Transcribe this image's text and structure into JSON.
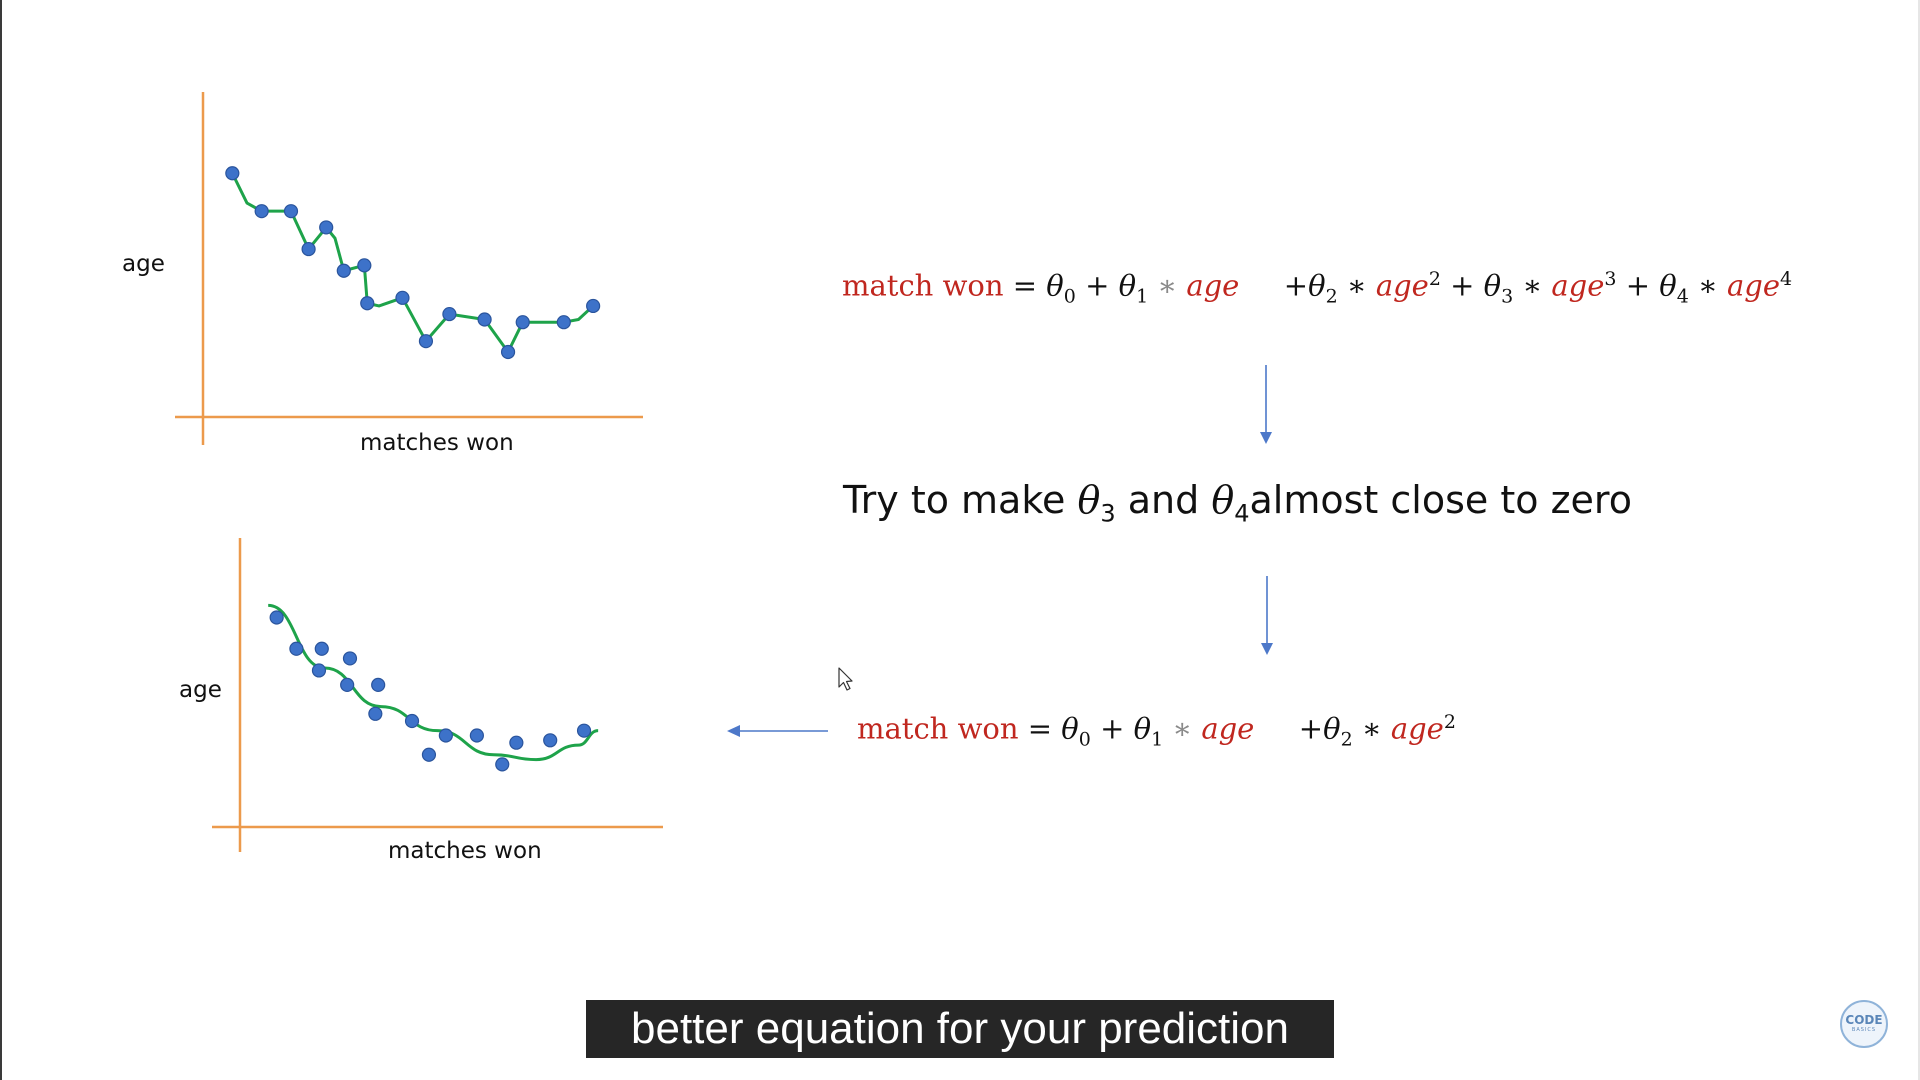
{
  "chart_data": [
    {
      "type": "line",
      "xlabel": "matches won",
      "ylabel": "age",
      "fit": "overfit",
      "points": [
        [
          1,
          9.0
        ],
        [
          2,
          7.6
        ],
        [
          3,
          7.6
        ],
        [
          3.6,
          6.2
        ],
        [
          4.2,
          7.0
        ],
        [
          4.8,
          5.4
        ],
        [
          5.5,
          5.6
        ],
        [
          5.6,
          4.2
        ],
        [
          6.8,
          4.4
        ],
        [
          7.6,
          2.8
        ],
        [
          8.4,
          3.8
        ],
        [
          9.6,
          3.6
        ],
        [
          10.4,
          2.4
        ],
        [
          10.9,
          3.5
        ],
        [
          12.3,
          3.5
        ],
        [
          13.3,
          4.1
        ]
      ],
      "curve": [
        [
          1,
          9.0
        ],
        [
          1.5,
          7.9
        ],
        [
          2,
          7.6
        ],
        [
          3,
          7.6
        ],
        [
          3.6,
          6.2
        ],
        [
          4.2,
          7.0
        ],
        [
          4.5,
          6.6
        ],
        [
          4.8,
          5.4
        ],
        [
          5.5,
          5.6
        ],
        [
          5.6,
          4.2
        ],
        [
          6.0,
          4.1
        ],
        [
          6.8,
          4.4
        ],
        [
          7.6,
          2.8
        ],
        [
          8.4,
          3.8
        ],
        [
          9.6,
          3.6
        ],
        [
          10.4,
          2.4
        ],
        [
          10.9,
          3.5
        ],
        [
          12.3,
          3.5
        ],
        [
          12.8,
          3.6
        ],
        [
          13.3,
          4.1
        ]
      ],
      "xlim": [
        0,
        15
      ],
      "ylim": [
        0,
        12
      ]
    },
    {
      "type": "scatter",
      "xlabel": "matches won",
      "ylabel": "age",
      "fit": "quadratic",
      "points": [
        [
          1.3,
          8.7
        ],
        [
          2.0,
          7.4
        ],
        [
          2.9,
          7.4
        ],
        [
          2.8,
          6.5
        ],
        [
          3.9,
          7.0
        ],
        [
          3.8,
          5.9
        ],
        [
          4.9,
          5.9
        ],
        [
          4.8,
          4.7
        ],
        [
          6.1,
          4.4
        ],
        [
          6.7,
          3.0
        ],
        [
          7.3,
          3.8
        ],
        [
          8.4,
          3.8
        ],
        [
          9.3,
          2.6
        ],
        [
          9.8,
          3.5
        ],
        [
          11.0,
          3.6
        ],
        [
          12.2,
          4.0
        ]
      ],
      "curve": [
        [
          1.0,
          9.2
        ],
        [
          3.0,
          6.6
        ],
        [
          5.0,
          5.0
        ],
        [
          7.0,
          4.0
        ],
        [
          9.0,
          3.0
        ],
        [
          10.5,
          2.8
        ],
        [
          12.0,
          3.4
        ],
        [
          12.7,
          4.0
        ]
      ],
      "xlim": [
        0,
        15
      ],
      "ylim": [
        0,
        12
      ]
    }
  ],
  "equation_top": {
    "lhs": "match won",
    "equals": "=",
    "theta": "θ",
    "sub0": "0",
    "sub1": "1",
    "sub2": "2",
    "sub3": "3",
    "sub4": "4",
    "plus": "+",
    "star": "∗",
    "var": "age",
    "pow2": "2",
    "pow3": "3",
    "pow4": "4"
  },
  "statement": {
    "part1": "Try to make",
    "theta": "θ",
    "sub3": "3",
    "part2": "and",
    "sub4": "4",
    "part3": "almost close to zero"
  },
  "equation_bottom": {
    "lhs": "match won",
    "equals": "=",
    "theta": "θ",
    "sub0": "0",
    "sub1": "1",
    "sub2": "2",
    "plus": "+",
    "star": "∗",
    "var": "age",
    "pow2": "2"
  },
  "caption": "better equation for your prediction",
  "logo": {
    "line1": "CODE",
    "line2": "BASICS"
  },
  "colors": {
    "axis": "#ec9a4c",
    "curve": "#1ea34a",
    "point": "#3d72c9",
    "point_stroke": "#2a549c",
    "arrow": "#4d78c9",
    "emphasis": "#c0271f"
  }
}
